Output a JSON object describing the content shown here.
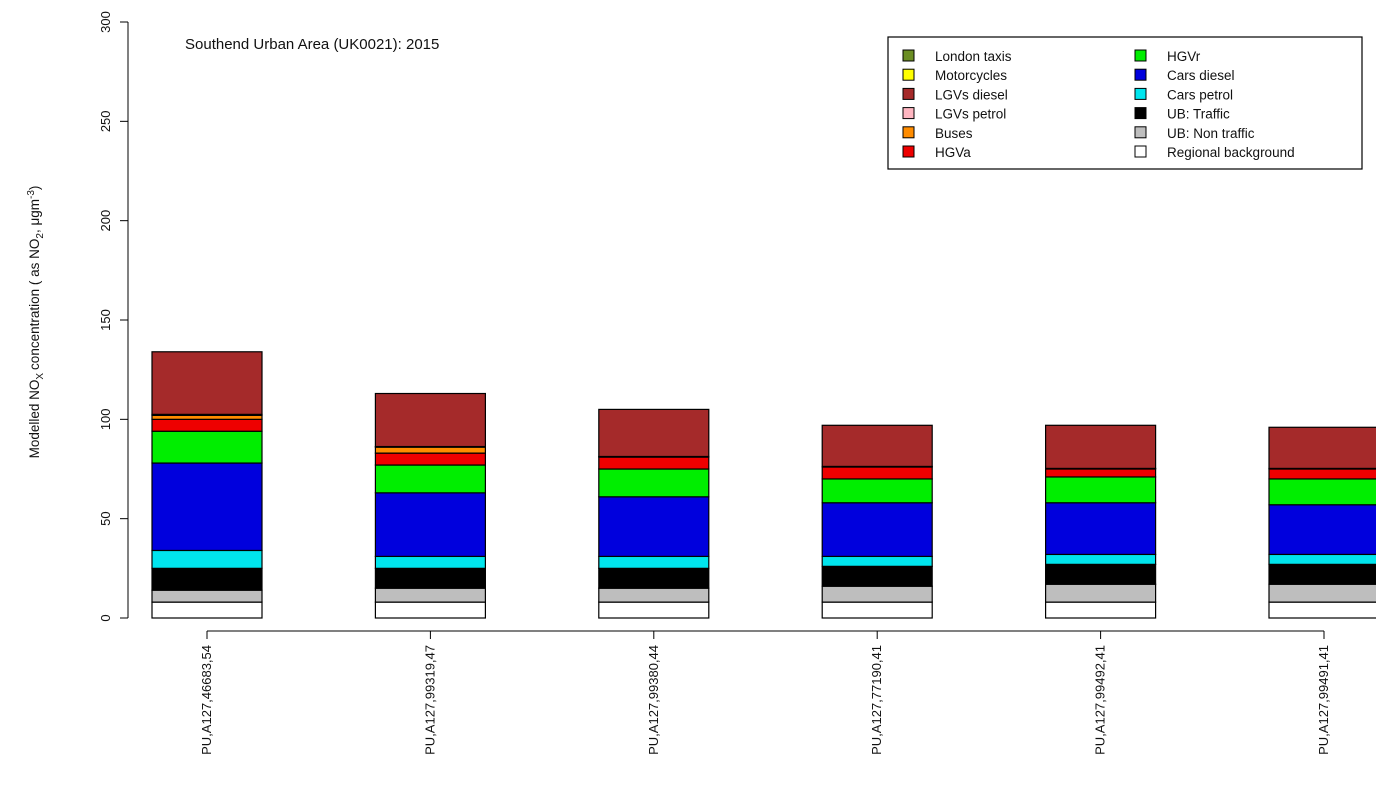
{
  "chart_data": {
    "type": "bar",
    "stacked": true,
    "title": "Southend Urban Area (UK0021): 2015",
    "ylabel": {
      "prefix": "Modelled NO",
      "sub1": "X",
      "mid": " as NO",
      "sub2": "2",
      "tail": ", μgm",
      "sup": "-3",
      "close": ")",
      "open": "concentration ("
    },
    "ylim": [
      0,
      300
    ],
    "yticks": [
      "0",
      "50",
      "100",
      "150",
      "200",
      "250",
      "300"
    ],
    "grid": false,
    "legend_position": "top-right",
    "categories": [
      "PU,A127,46683,54",
      "PU,A127,99319,47",
      "PU,A127,99380,44",
      "PU,A127,77190,41",
      "PU,A127,99492,41",
      "PU,A127,99491,41"
    ],
    "series": [
      {
        "name": "Regional background",
        "color": "#ffffff",
        "values": [
          8,
          8,
          8,
          8,
          8,
          8
        ]
      },
      {
        "name": "UB: Non traffic",
        "color": "#bebebe",
        "values": [
          6,
          7,
          7,
          8,
          9,
          9
        ]
      },
      {
        "name": "UB: Traffic",
        "color": "#000000",
        "values": [
          11,
          10,
          10,
          10,
          10,
          10
        ]
      },
      {
        "name": "Cars petrol",
        "color": "#00e5ee",
        "values": [
          9,
          6,
          6,
          5,
          5,
          5
        ]
      },
      {
        "name": "Cars diesel",
        "color": "#0000dd",
        "values": [
          44,
          32,
          30,
          27,
          26,
          25
        ]
      },
      {
        "name": "HGVr",
        "color": "#00ee00",
        "values": [
          16,
          14,
          14,
          12,
          13,
          13
        ]
      },
      {
        "name": "HGVa",
        "color": "#ee0000",
        "values": [
          6,
          6,
          6,
          6,
          4,
          5
        ]
      },
      {
        "name": "Buses",
        "color": "#ff8c00",
        "values": [
          2,
          3,
          0,
          0,
          0,
          0
        ]
      },
      {
        "name": "LGVs petrol",
        "color": "#ffb6c1",
        "values": [
          0.5,
          0.3,
          0.3,
          0.3,
          0.3,
          0.3
        ]
      },
      {
        "name": "LGVs diesel",
        "color": "#a52a2a",
        "values": [
          31.5,
          26.7,
          23.7,
          20.7,
          21.7,
          20.7
        ]
      },
      {
        "name": "Motorcycles",
        "color": "#ffff00",
        "values": [
          0,
          0,
          0,
          0,
          0,
          0
        ]
      },
      {
        "name": "London taxis",
        "color": "#6b8e23",
        "values": [
          0,
          0,
          0,
          0,
          0,
          0
        ]
      }
    ],
    "legend_columns": [
      [
        "London taxis",
        "Motorcycles",
        "LGVs diesel",
        "LGVs petrol",
        "Buses",
        "HGVa"
      ],
      [
        "HGVr",
        "Cars diesel",
        "Cars petrol",
        "UB: Traffic",
        "UB: Non traffic",
        "Regional background"
      ]
    ]
  }
}
